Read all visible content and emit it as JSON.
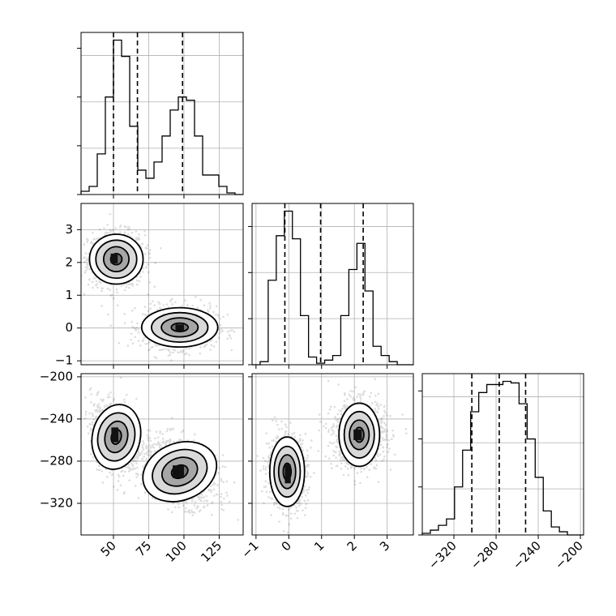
{
  "chart_data": {
    "type": "corner",
    "grid": true,
    "parameters": [
      {
        "id": "p0",
        "xlim": [
          27,
          142
        ],
        "ticks": [
          50,
          75,
          100,
          125
        ],
        "tick_labels": [
          "50",
          "75",
          "100",
          "125"
        ],
        "quantiles": [
          50,
          67,
          99
        ],
        "hist_edges": [
          27,
          32.75,
          38.5,
          44.25,
          50,
          55.75,
          61.5,
          67.25,
          73,
          78.75,
          84.5,
          90.25,
          96,
          101.75,
          107.5,
          113.25,
          119,
          124.75,
          130.5,
          136.25,
          142
        ],
        "hist_counts": [
          0.02,
          0.05,
          0.25,
          0.6,
          0.95,
          0.85,
          0.42,
          0.15,
          0.1,
          0.2,
          0.36,
          0.52,
          0.6,
          0.58,
          0.36,
          0.12,
          0.12,
          0.05,
          0.01,
          0.0
        ]
      },
      {
        "id": "p1",
        "xlim": [
          -1.12,
          3.8
        ],
        "ticks": [
          -1,
          0,
          1,
          2,
          3
        ],
        "tick_labels": [
          "−1",
          "0",
          "1",
          "2",
          "3"
        ],
        "quantiles": [
          -0.12,
          0.97,
          2.27
        ],
        "hist_edges": [
          -1.12,
          -0.874,
          -0.628,
          -0.382,
          -0.136,
          0.11,
          0.356,
          0.602,
          0.848,
          1.094,
          1.34,
          1.586,
          1.832,
          2.078,
          2.324,
          2.57,
          2.816,
          3.062,
          3.308,
          3.554,
          3.8
        ],
        "hist_counts": [
          0.0,
          0.02,
          0.55,
          0.84,
          1.0,
          0.82,
          0.32,
          0.05,
          0.01,
          0.03,
          0.06,
          0.32,
          0.62,
          0.79,
          0.48,
          0.12,
          0.06,
          0.02,
          0.0,
          0.0
        ],
        "ylim": [
          -1.12,
          3.8
        ],
        "yticks": [
          -1,
          0,
          1,
          2,
          3
        ],
        "ytick_labels": [
          "−1",
          "0",
          "1",
          "2",
          "3"
        ]
      },
      {
        "id": "p2",
        "xlim": [
          -350,
          -197
        ],
        "ticks": [
          -320,
          -280,
          -240,
          -200
        ],
        "tick_labels": [
          "−320",
          "−280",
          "−240",
          "−200"
        ],
        "quantiles": [
          -303,
          -277,
          -252
        ],
        "hist_edges": [
          -350,
          -342.35,
          -334.7,
          -327.05,
          -319.4,
          -311.75,
          -304.1,
          -296.45,
          -288.8,
          -281.15,
          -273.5,
          -265.85,
          -258.2,
          -250.55,
          -242.9,
          -235.25,
          -227.6,
          -219.95,
          -212.3,
          -204.65,
          -197
        ],
        "hist_counts": [
          0.01,
          0.03,
          0.06,
          0.1,
          0.3,
          0.53,
          0.77,
          0.89,
          0.94,
          0.94,
          0.96,
          0.95,
          0.82,
          0.6,
          0.36,
          0.15,
          0.05,
          0.02,
          0.0,
          0.0
        ],
        "ylim": [
          -350,
          -197
        ],
        "yticks": [
          -320,
          -280,
          -240,
          -200
        ],
        "ytick_labels": [
          "−320",
          "−280",
          "−240",
          "−200"
        ]
      }
    ],
    "pairs": [
      {
        "x": "p0",
        "y": "p1",
        "clusters": [
          {
            "mx": 52,
            "my": 2.1,
            "sx": 10,
            "sy": 0.42,
            "rho": 0.0,
            "n": 900
          },
          {
            "mx": 97,
            "my": 0.02,
            "sx": 13,
            "sy": 0.32,
            "rho": 0.0,
            "n": 1000
          }
        ],
        "contours": [
          {
            "cx": 52,
            "cy": 2.1,
            "levels": [
              {
                "rx": 4,
                "ry": 0.17
              },
              {
                "rx": 9,
                "ry": 0.38
              },
              {
                "rx": 14.5,
                "ry": 0.58
              },
              {
                "rx": 19,
                "ry": 0.76
              }
            ]
          },
          {
            "cx": 97,
            "cy": 0.02,
            "levels": [
              {
                "rx": 6,
                "ry": 0.13
              },
              {
                "rx": 13,
                "ry": 0.29
              },
              {
                "rx": 20,
                "ry": 0.45
              },
              {
                "rx": 27,
                "ry": 0.6
              }
            ]
          }
        ],
        "peaks": [
          {
            "x": 50.5,
            "y": 2.12,
            "w": 5,
            "h": 0.3
          },
          {
            "x": 97,
            "y": 0.0,
            "w": 6,
            "h": 0.22
          }
        ]
      },
      {
        "x": "p0",
        "y": "p2",
        "clusters": [
          {
            "mx": 52,
            "my": -257,
            "sx": 9,
            "sy": 17,
            "rho": -0.3,
            "n": 900
          },
          {
            "mx": 97,
            "my": -290,
            "sx": 13,
            "sy": 16,
            "rho": -0.4,
            "n": 1000
          }
        ],
        "contours": [
          {
            "cx": 52,
            "cy": -257,
            "rot": 12,
            "levels": [
              {
                "rx": 3.5,
                "ry": 7
              },
              {
                "rx": 8,
                "ry": 15
              },
              {
                "rx": 13,
                "ry": 23
              },
              {
                "rx": 17,
                "ry": 31
              }
            ]
          },
          {
            "cx": 97,
            "cy": -290,
            "rot": -22,
            "levels": [
              {
                "rx": 6,
                "ry": 6
              },
              {
                "rx": 13,
                "ry": 13
              },
              {
                "rx": 20,
                "ry": 20
              },
              {
                "rx": 27,
                "ry": 27
              }
            ]
          }
        ],
        "peaks": [
          {
            "x": 51,
            "y": -255,
            "w": 5,
            "h": 14
          },
          {
            "x": 96,
            "y": -290,
            "w": 8,
            "h": 12
          }
        ]
      },
      {
        "x": "p1",
        "y": "p2",
        "clusters": [
          {
            "mx": -0.05,
            "my": -290,
            "sx": 0.3,
            "sy": 17,
            "rho": 0.0,
            "n": 900
          },
          {
            "mx": 2.15,
            "my": -255,
            "sx": 0.4,
            "sy": 16,
            "rho": 0.0,
            "n": 1000
          }
        ],
        "contours": [
          {
            "cx": -0.05,
            "cy": -290,
            "levels": [
              {
                "rx": 0.12,
                "ry": 8
              },
              {
                "rx": 0.26,
                "ry": 16
              },
              {
                "rx": 0.4,
                "ry": 24
              },
              {
                "rx": 0.53,
                "ry": 33
              }
            ]
          },
          {
            "cx": 2.15,
            "cy": -255,
            "levels": [
              {
                "rx": 0.14,
                "ry": 7
              },
              {
                "rx": 0.3,
                "ry": 14
              },
              {
                "rx": 0.46,
                "ry": 22
              },
              {
                "rx": 0.62,
                "ry": 30
              }
            ]
          }
        ],
        "peaks": [
          {
            "x": -0.03,
            "y": -292,
            "w": 0.18,
            "h": 18
          },
          {
            "x": 2.1,
            "y": -255,
            "w": 0.25,
            "h": 10
          }
        ]
      }
    ]
  }
}
